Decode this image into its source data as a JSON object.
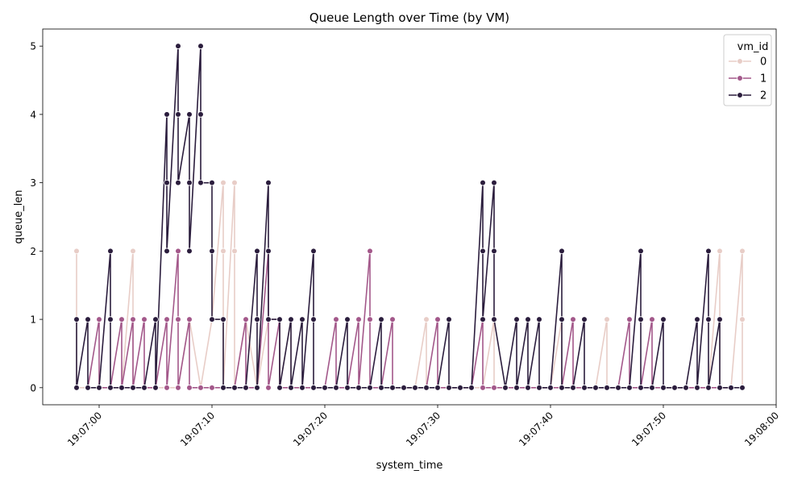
{
  "chart_data": {
    "type": "line",
    "title": "Queue Length over Time (by VM)",
    "xlabel": "system_time",
    "ylabel": "queue_len",
    "xlim": [
      "19:06:55",
      "19:08:00"
    ],
    "ylim": [
      -0.25,
      5.25
    ],
    "x_ticks": [
      "19:07:00",
      "19:07:10",
      "19:07:20",
      "19:07:30",
      "19:07:40",
      "19:07:50",
      "19:08:00"
    ],
    "y_ticks": [
      0,
      1,
      2,
      3,
      4,
      5
    ],
    "grid": false,
    "legend": {
      "title": "vm_id",
      "placement": "top-right"
    },
    "series": [
      {
        "name": "0",
        "color": "#e8cdc7",
        "points": [
          [
            "19:06:58",
            2
          ],
          [
            "19:06:58",
            0
          ],
          [
            "19:06:59",
            0
          ],
          [
            "19:07:00",
            0
          ],
          [
            "19:07:01",
            0
          ],
          [
            "19:07:02",
            0
          ],
          [
            "19:07:03",
            2
          ],
          [
            "19:07:03",
            0
          ],
          [
            "19:07:04",
            0
          ],
          [
            "19:07:05",
            0
          ],
          [
            "19:07:06",
            0
          ],
          [
            "19:07:07",
            0
          ],
          [
            "19:07:08",
            1
          ],
          [
            "19:07:09",
            0
          ],
          [
            "19:07:10",
            1
          ],
          [
            "19:07:11",
            3
          ],
          [
            "19:07:11",
            2
          ],
          [
            "19:07:11",
            0
          ],
          [
            "19:07:12",
            3
          ],
          [
            "19:07:12",
            2
          ],
          [
            "19:07:12",
            0
          ],
          [
            "19:07:13",
            1
          ],
          [
            "19:07:14",
            0
          ],
          [
            "19:07:15",
            1
          ],
          [
            "19:07:16",
            1
          ],
          [
            "19:07:16",
            0
          ],
          [
            "19:07:17",
            1
          ],
          [
            "19:07:17",
            0
          ],
          [
            "19:07:18",
            0
          ],
          [
            "19:07:19",
            0
          ],
          [
            "19:07:20",
            0
          ],
          [
            "19:07:21",
            0
          ],
          [
            "19:07:22",
            0
          ],
          [
            "19:07:23",
            0
          ],
          [
            "19:07:24",
            0
          ],
          [
            "19:07:25",
            0
          ],
          [
            "19:07:26",
            0
          ],
          [
            "19:07:27",
            0
          ],
          [
            "19:07:28",
            0
          ],
          [
            "19:07:29",
            1
          ],
          [
            "19:07:29",
            0
          ],
          [
            "19:07:30",
            0
          ],
          [
            "19:07:31",
            0
          ],
          [
            "19:07:32",
            0
          ],
          [
            "19:07:33",
            0
          ],
          [
            "19:07:34",
            0
          ],
          [
            "19:07:35",
            1
          ],
          [
            "19:07:35",
            0
          ],
          [
            "19:07:36",
            0
          ],
          [
            "19:07:37",
            0
          ],
          [
            "19:07:38",
            0
          ],
          [
            "19:07:39",
            0
          ],
          [
            "19:07:40",
            0
          ],
          [
            "19:07:41",
            1
          ],
          [
            "19:07:41",
            0
          ],
          [
            "19:07:42",
            0
          ],
          [
            "19:07:43",
            0
          ],
          [
            "19:07:44",
            0
          ],
          [
            "19:07:45",
            1
          ],
          [
            "19:07:45",
            0
          ],
          [
            "19:07:46",
            0
          ],
          [
            "19:07:47",
            0
          ],
          [
            "19:07:48",
            0
          ],
          [
            "19:07:49",
            0
          ],
          [
            "19:07:50",
            0
          ],
          [
            "19:07:51",
            0
          ],
          [
            "19:07:52",
            0
          ],
          [
            "19:07:53",
            0
          ],
          [
            "19:07:54",
            0
          ],
          [
            "19:07:55",
            2
          ],
          [
            "19:07:55",
            1
          ],
          [
            "19:07:55",
            0
          ],
          [
            "19:07:56",
            0
          ],
          [
            "19:07:57",
            2
          ],
          [
            "19:07:57",
            1
          ],
          [
            "19:07:57",
            0
          ]
        ]
      },
      {
        "name": "1",
        "color": "#a3588a",
        "points": [
          [
            "19:06:59",
            0
          ],
          [
            "19:07:00",
            1
          ],
          [
            "19:07:00",
            0
          ],
          [
            "19:07:01",
            0
          ],
          [
            "19:07:02",
            1
          ],
          [
            "19:07:02",
            0
          ],
          [
            "19:07:03",
            1
          ],
          [
            "19:07:03",
            0
          ],
          [
            "19:07:04",
            1
          ],
          [
            "19:07:04",
            0
          ],
          [
            "19:07:05",
            0
          ],
          [
            "19:07:06",
            1
          ],
          [
            "19:07:06",
            0
          ],
          [
            "19:07:07",
            2
          ],
          [
            "19:07:07",
            1
          ],
          [
            "19:07:07",
            0
          ],
          [
            "19:07:08",
            1
          ],
          [
            "19:07:08",
            0
          ],
          [
            "19:07:09",
            0
          ],
          [
            "19:07:10",
            0
          ],
          [
            "19:07:11",
            0
          ],
          [
            "19:07:12",
            0
          ],
          [
            "19:07:13",
            1
          ],
          [
            "19:07:13",
            0
          ],
          [
            "19:07:14",
            0
          ],
          [
            "19:07:15",
            2
          ],
          [
            "19:07:15",
            0
          ],
          [
            "19:07:16",
            1
          ],
          [
            "19:07:16",
            0
          ],
          [
            "19:07:17",
            0
          ],
          [
            "19:07:18",
            0
          ],
          [
            "19:07:19",
            0
          ],
          [
            "19:07:20",
            0
          ],
          [
            "19:07:21",
            1
          ],
          [
            "19:07:21",
            0
          ],
          [
            "19:07:22",
            0
          ],
          [
            "19:07:23",
            1
          ],
          [
            "19:07:23",
            0
          ],
          [
            "19:07:24",
            2
          ],
          [
            "19:07:24",
            1
          ],
          [
            "19:07:24",
            0
          ],
          [
            "19:07:25",
            0
          ],
          [
            "19:07:26",
            1
          ],
          [
            "19:07:26",
            0
          ],
          [
            "19:07:27",
            0
          ],
          [
            "19:07:28",
            0
          ],
          [
            "19:07:29",
            0
          ],
          [
            "19:07:30",
            1
          ],
          [
            "19:07:30",
            0
          ],
          [
            "19:07:31",
            0
          ],
          [
            "19:07:32",
            0
          ],
          [
            "19:07:33",
            0
          ],
          [
            "19:07:34",
            1
          ],
          [
            "19:07:34",
            0
          ],
          [
            "19:07:35",
            0
          ],
          [
            "19:07:36",
            0
          ],
          [
            "19:07:37",
            0
          ],
          [
            "19:07:38",
            0
          ],
          [
            "19:07:39",
            0
          ],
          [
            "19:07:40",
            0
          ],
          [
            "19:07:41",
            0
          ],
          [
            "19:07:42",
            1
          ],
          [
            "19:07:42",
            0
          ],
          [
            "19:07:43",
            0
          ],
          [
            "19:07:44",
            0
          ],
          [
            "19:07:45",
            0
          ],
          [
            "19:07:46",
            0
          ],
          [
            "19:07:47",
            1
          ],
          [
            "19:07:47",
            0
          ],
          [
            "19:07:48",
            0
          ],
          [
            "19:07:49",
            1
          ],
          [
            "19:07:49",
            0
          ],
          [
            "19:07:50",
            0
          ],
          [
            "19:07:51",
            0
          ],
          [
            "19:07:52",
            0
          ],
          [
            "19:07:53",
            0
          ],
          [
            "19:07:54",
            0
          ],
          [
            "19:07:55",
            0
          ],
          [
            "19:07:56",
            0
          ]
        ]
      },
      {
        "name": "2",
        "color": "#2b1d3d",
        "points": [
          [
            "19:06:58",
            1
          ],
          [
            "19:06:58",
            0
          ],
          [
            "19:06:59",
            1
          ],
          [
            "19:06:59",
            0
          ],
          [
            "19:07:00",
            0
          ],
          [
            "19:07:01",
            2
          ],
          [
            "19:07:01",
            1
          ],
          [
            "19:07:01",
            0
          ],
          [
            "19:07:02",
            0
          ],
          [
            "19:07:03",
            0
          ],
          [
            "19:07:04",
            0
          ],
          [
            "19:07:05",
            1
          ],
          [
            "19:07:05",
            0
          ],
          [
            "19:07:06",
            4
          ],
          [
            "19:07:06",
            3
          ],
          [
            "19:07:06",
            2
          ],
          [
            "19:07:07",
            5
          ],
          [
            "19:07:07",
            4
          ],
          [
            "19:07:07",
            3
          ],
          [
            "19:07:08",
            4
          ],
          [
            "19:07:08",
            3
          ],
          [
            "19:07:08",
            2
          ],
          [
            "19:07:09",
            5
          ],
          [
            "19:07:09",
            4
          ],
          [
            "19:07:09",
            3
          ],
          [
            "19:07:10",
            3
          ],
          [
            "19:07:10",
            2
          ],
          [
            "19:07:10",
            1
          ],
          [
            "19:07:11",
            1
          ],
          [
            "19:07:11",
            0
          ],
          [
            "19:07:12",
            0
          ],
          [
            "19:07:13",
            0
          ],
          [
            "19:07:14",
            2
          ],
          [
            "19:07:14",
            1
          ],
          [
            "19:07:14",
            0
          ],
          [
            "19:07:15",
            3
          ],
          [
            "19:07:15",
            2
          ],
          [
            "19:07:15",
            1
          ],
          [
            "19:07:16",
            1
          ],
          [
            "19:07:16",
            0
          ],
          [
            "19:07:17",
            1
          ],
          [
            "19:07:17",
            0
          ],
          [
            "19:07:18",
            1
          ],
          [
            "19:07:18",
            0
          ],
          [
            "19:07:19",
            2
          ],
          [
            "19:07:19",
            1
          ],
          [
            "19:07:19",
            0
          ],
          [
            "19:07:20",
            0
          ],
          [
            "19:07:21",
            0
          ],
          [
            "19:07:22",
            1
          ],
          [
            "19:07:22",
            0
          ],
          [
            "19:07:23",
            0
          ],
          [
            "19:07:24",
            0
          ],
          [
            "19:07:25",
            1
          ],
          [
            "19:07:25",
            0
          ],
          [
            "19:07:26",
            0
          ],
          [
            "19:07:27",
            0
          ],
          [
            "19:07:28",
            0
          ],
          [
            "19:07:29",
            0
          ],
          [
            "19:07:30",
            0
          ],
          [
            "19:07:31",
            1
          ],
          [
            "19:07:31",
            0
          ],
          [
            "19:07:32",
            0
          ],
          [
            "19:07:33",
            0
          ],
          [
            "19:07:34",
            3
          ],
          [
            "19:07:34",
            2
          ],
          [
            "19:07:34",
            1
          ],
          [
            "19:07:35",
            3
          ],
          [
            "19:07:35",
            2
          ],
          [
            "19:07:35",
            1
          ],
          [
            "19:07:36",
            0
          ],
          [
            "19:07:37",
            1
          ],
          [
            "19:07:37",
            0
          ],
          [
            "19:07:38",
            1
          ],
          [
            "19:07:38",
            0
          ],
          [
            "19:07:39",
            1
          ],
          [
            "19:07:39",
            0
          ],
          [
            "19:07:40",
            0
          ],
          [
            "19:07:41",
            2
          ],
          [
            "19:07:41",
            1
          ],
          [
            "19:07:41",
            0
          ],
          [
            "19:07:42",
            0
          ],
          [
            "19:07:43",
            1
          ],
          [
            "19:07:43",
            0
          ],
          [
            "19:07:44",
            0
          ],
          [
            "19:07:45",
            0
          ],
          [
            "19:07:46",
            0
          ],
          [
            "19:07:47",
            0
          ],
          [
            "19:07:48",
            2
          ],
          [
            "19:07:48",
            1
          ],
          [
            "19:07:48",
            0
          ],
          [
            "19:07:49",
            0
          ],
          [
            "19:07:50",
            1
          ],
          [
            "19:07:50",
            0
          ],
          [
            "19:07:51",
            0
          ],
          [
            "19:07:52",
            0
          ],
          [
            "19:07:53",
            1
          ],
          [
            "19:07:53",
            0
          ],
          [
            "19:07:54",
            2
          ],
          [
            "19:07:54",
            1
          ],
          [
            "19:07:54",
            0
          ],
          [
            "19:07:55",
            1
          ],
          [
            "19:07:55",
            0
          ],
          [
            "19:07:56",
            0
          ],
          [
            "19:07:57",
            0
          ]
        ]
      }
    ]
  }
}
